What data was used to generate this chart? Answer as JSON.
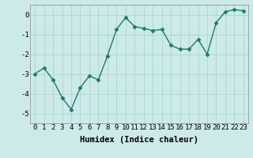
{
  "x": [
    0,
    1,
    2,
    3,
    4,
    5,
    6,
    7,
    8,
    9,
    10,
    11,
    12,
    13,
    14,
    15,
    16,
    17,
    18,
    19,
    20,
    21,
    22,
    23
  ],
  "y": [
    -3.0,
    -2.7,
    -3.3,
    -4.2,
    -4.8,
    -3.7,
    -3.1,
    -3.3,
    -2.1,
    -0.75,
    -0.15,
    -0.6,
    -0.7,
    -0.8,
    -0.75,
    -1.55,
    -1.75,
    -1.75,
    -1.25,
    -2.0,
    -0.4,
    0.15,
    0.25,
    0.2
  ],
  "line_color": "#1a7a6e",
  "marker": "D",
  "marker_size": 2.5,
  "background_color": "#cceae7",
  "grid_color": "#afd4d0",
  "xlabel": "Humidex (Indice chaleur)",
  "xlabel_fontsize": 7.5,
  "xlim": [
    -0.5,
    23.5
  ],
  "ylim": [
    -5.5,
    0.5
  ],
  "yticks": [
    0,
    -1,
    -2,
    -3,
    -4,
    -5
  ],
  "xticks": [
    0,
    1,
    2,
    3,
    4,
    5,
    6,
    7,
    8,
    9,
    10,
    11,
    12,
    13,
    14,
    15,
    16,
    17,
    18,
    19,
    20,
    21,
    22,
    23
  ],
  "tick_fontsize": 6.5,
  "linewidth": 1.0
}
